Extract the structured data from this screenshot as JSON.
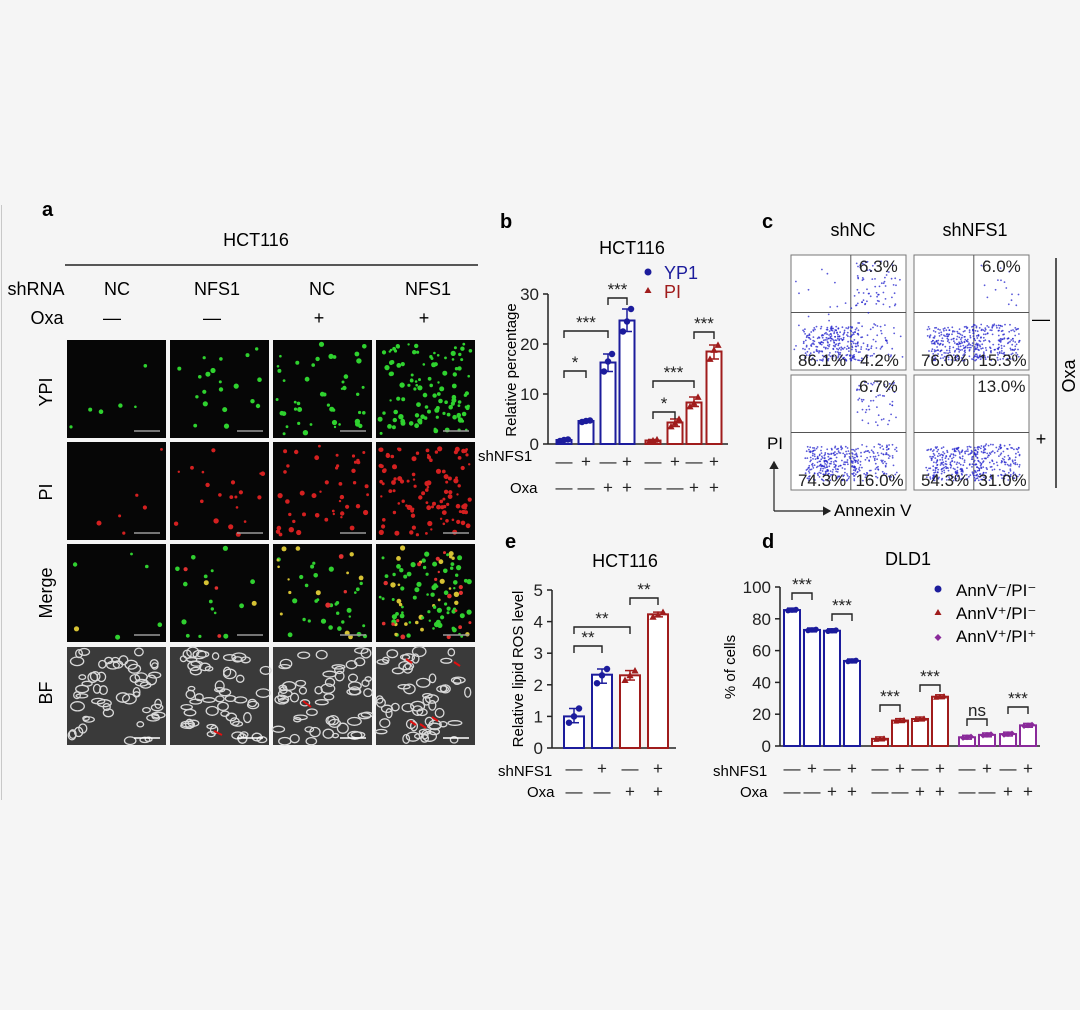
{
  "panel_a": {
    "letter": "a",
    "cell_line": "HCT116",
    "row_labels": {
      "shRNA": "shRNA",
      "oxa": "Oxa"
    },
    "columns": [
      {
        "shrna": "NC",
        "oxa": "—"
      },
      {
        "shrna": "NFS1",
        "oxa": "—"
      },
      {
        "shrna": "NC",
        "oxa": "+"
      },
      {
        "shrna": "NFS1",
        "oxa": "+"
      }
    ],
    "rows": [
      "YPI",
      "PI",
      "Merge",
      "BF"
    ]
  },
  "panel_b": {
    "letter": "b",
    "chart_data": {
      "type": "bar",
      "title": "HCT116",
      "ylabel": "Relative percentage",
      "ylim": [
        0,
        30
      ],
      "yticks": [
        0,
        10,
        20,
        30
      ],
      "factor_labels": {
        "shnfs1": "shNFS1",
        "oxa": "Oxa"
      },
      "shnfs1_signs": [
        "—",
        "+",
        "—",
        "+",
        "—",
        "+",
        "—",
        "+"
      ],
      "oxa_signs": [
        "—",
        "—",
        "+",
        "+",
        "—",
        "—",
        "+",
        "+"
      ],
      "legend": [
        {
          "name": "YP1",
          "color": "#1c1c9c",
          "marker": "circle"
        },
        {
          "name": "PI",
          "color": "#a01c1c",
          "marker": "triangle"
        }
      ],
      "series": [
        {
          "name": "YP1",
          "color": "#1c1c9c",
          "values": [
            0.8,
            4.6,
            16.3,
            24.7
          ],
          "points": [
            [
              0.6,
              0.8,
              0.9
            ],
            [
              4.4,
              4.6,
              4.7
            ],
            [
              14.5,
              16.5,
              18.0
            ],
            [
              22.5,
              24.5,
              27.0
            ]
          ]
        },
        {
          "name": "PI",
          "color": "#a01c1c",
          "values": [
            0.7,
            4.3,
            8.3,
            18.5
          ],
          "points": [
            [
              0.4,
              0.7,
              0.9
            ],
            [
              3.5,
              4.2,
              5.0
            ],
            [
              7.5,
              8.2,
              9.4
            ],
            [
              17.0,
              18.8,
              19.8
            ]
          ]
        }
      ],
      "significance": [
        {
          "g": 0,
          "a": 0,
          "b": 1,
          "label": "*"
        },
        {
          "g": 0,
          "a": 0,
          "b": 2,
          "label": "***"
        },
        {
          "g": 0,
          "a": 2,
          "b": 3,
          "label": "***"
        },
        {
          "g": 1,
          "a": 0,
          "b": 1,
          "label": "*"
        },
        {
          "g": 1,
          "a": 0,
          "b": 2,
          "label": "***"
        },
        {
          "g": 1,
          "a": 2,
          "b": 3,
          "label": "***"
        }
      ]
    }
  },
  "panel_c": {
    "letter": "c",
    "col_labels": [
      "shNC",
      "shNFS1"
    ],
    "side_labels": {
      "minus": "—",
      "plus": "+",
      "oxa": "Oxa"
    },
    "axis_y": "PI",
    "axis_x": "Annexin V",
    "quadrants": [
      {
        "ur": "6.3%",
        "ll": "86.1%",
        "lr": "4.2%"
      },
      {
        "ur": "6.0%",
        "ll": "76.0%",
        "lr": "15.3%"
      },
      {
        "ur": "6.7%",
        "ll": "74.3%",
        "lr": "16.0%"
      },
      {
        "ur": "13.0%",
        "ll": "54.3%",
        "lr": "31.0%"
      }
    ]
  },
  "panel_e": {
    "letter": "e",
    "chart_data": {
      "type": "bar",
      "title": "HCT116",
      "ylabel": "Relative lipid ROS level",
      "ylim": [
        0,
        5
      ],
      "yticks": [
        0,
        1,
        2,
        3,
        4,
        5
      ],
      "factor_labels": {
        "shnfs1": "shNFS1",
        "oxa": "Oxa"
      },
      "shnfs1_signs": [
        "—",
        "+",
        "—",
        "+"
      ],
      "oxa_signs": [
        "—",
        "—",
        "+",
        "+"
      ],
      "series": [
        {
          "name": "",
          "values": [
            1.0,
            2.32,
            2.3,
            4.23
          ],
          "colors": [
            "#1c1c9c",
            "#1c1c9c",
            "#a01c1c",
            "#a01c1c"
          ],
          "points": [
            [
              0.8,
              1.0,
              1.25
            ],
            [
              2.05,
              2.3,
              2.5
            ],
            [
              2.15,
              2.3,
              2.45
            ],
            [
              4.15,
              4.22,
              4.3
            ]
          ]
        }
      ],
      "significance": [
        {
          "a": 0,
          "b": 1,
          "label": "**"
        },
        {
          "a": 0,
          "b": 2,
          "label": "**"
        },
        {
          "a": 2,
          "b": 3,
          "label": "**"
        }
      ]
    }
  },
  "panel_d": {
    "letter": "d",
    "chart_data": {
      "type": "bar",
      "title": "DLD1",
      "ylabel": "% of cells",
      "ylim": [
        0,
        100
      ],
      "yticks": [
        0,
        20,
        40,
        60,
        80,
        100
      ],
      "factor_labels": {
        "shnfs1": "shNFS1",
        "oxa": "Oxa"
      },
      "shnfs1_signs": [
        "—",
        "+",
        "—",
        "+"
      ],
      "oxa_signs": [
        "—",
        "—",
        "+",
        "+"
      ],
      "series": [
        {
          "name": "AnnV⁻/PI⁻",
          "color": "#1c1c9c",
          "marker": "circle",
          "values": [
            85.5,
            73,
            72.5,
            53.5
          ]
        },
        {
          "name": "AnnV⁺/PI⁻",
          "color": "#a01c1c",
          "marker": "triangle",
          "values": [
            4.5,
            16,
            17,
            31
          ]
        },
        {
          "name": "AnnV⁺/PI⁺",
          "color": "#8a2a9a",
          "marker": "diamond",
          "values": [
            5.5,
            7,
            7.5,
            13
          ]
        }
      ],
      "significance": [
        {
          "g": 0,
          "a": 0,
          "b": 1,
          "label": "***"
        },
        {
          "g": 0,
          "a": 2,
          "b": 3,
          "label": "***"
        },
        {
          "g": 1,
          "a": 0,
          "b": 1,
          "label": "***"
        },
        {
          "g": 1,
          "a": 2,
          "b": 3,
          "label": "***"
        },
        {
          "g": 2,
          "a": 0,
          "b": 1,
          "label": "ns"
        },
        {
          "g": 2,
          "a": 2,
          "b": 3,
          "label": "***"
        }
      ]
    }
  }
}
